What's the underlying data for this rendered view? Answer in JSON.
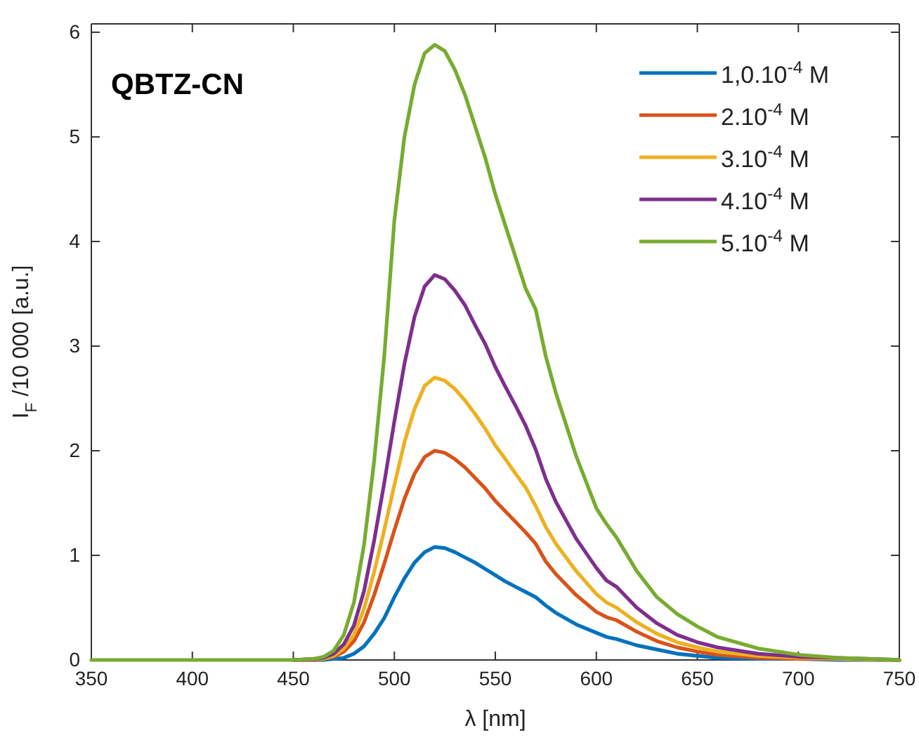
{
  "chart_data": {
    "type": "line",
    "title": "QBTZ-CN",
    "xlabel": "λ [nm]",
    "ylabel": "I$_{F}$ /10 000 [a.u.]",
    "x": [
      350,
      400,
      450,
      460,
      465,
      470,
      475,
      480,
      485,
      490,
      495,
      500,
      505,
      510,
      515,
      520,
      525,
      530,
      535,
      540,
      545,
      550,
      555,
      560,
      565,
      570,
      575,
      580,
      590,
      600,
      605,
      610,
      620,
      630,
      640,
      650,
      660,
      680,
      700,
      720,
      750
    ],
    "series": [
      {
        "name": "1,0.10$^{-4}$ M",
        "color": "#0072bd",
        "values": [
          null,
          null,
          0,
          0,
          0,
          0.01,
          0.02,
          0.06,
          0.13,
          0.25,
          0.4,
          0.6,
          0.78,
          0.93,
          1.03,
          1.08,
          1.07,
          1.03,
          0.98,
          0.93,
          0.87,
          0.81,
          0.75,
          0.7,
          0.65,
          0.6,
          0.52,
          0.45,
          0.34,
          0.26,
          0.22,
          0.2,
          0.14,
          0.1,
          0.06,
          0.04,
          0.02,
          0.01,
          0.01,
          0,
          0
        ]
      },
      {
        "name": "2.10$^{-4}$ M",
        "color": "#d95319",
        "values": [
          null,
          null,
          0,
          0,
          0.01,
          0.03,
          0.08,
          0.18,
          0.36,
          0.62,
          0.92,
          1.24,
          1.54,
          1.78,
          1.94,
          2.0,
          1.98,
          1.92,
          1.84,
          1.74,
          1.64,
          1.52,
          1.42,
          1.32,
          1.22,
          1.11,
          0.94,
          0.82,
          0.62,
          0.46,
          0.41,
          0.38,
          0.27,
          0.18,
          0.12,
          0.08,
          0.05,
          0.02,
          0.01,
          0.01,
          0
        ]
      },
      {
        "name": "3.10$^{-4}$ M",
        "color": "#edb120",
        "values": [
          null,
          null,
          0,
          0.01,
          0.01,
          0.04,
          0.11,
          0.24,
          0.49,
          0.84,
          1.24,
          1.67,
          2.08,
          2.4,
          2.62,
          2.7,
          2.67,
          2.59,
          2.48,
          2.35,
          2.21,
          2.05,
          1.92,
          1.78,
          1.65,
          1.47,
          1.27,
          1.11,
          0.85,
          0.63,
          0.55,
          0.5,
          0.36,
          0.25,
          0.17,
          0.12,
          0.08,
          0.04,
          0.02,
          0.01,
          0
        ]
      },
      {
        "name": "4.10$^{-4}$ M",
        "color": "#7e2f8e",
        "values": [
          null,
          null,
          0,
          0.01,
          0.02,
          0.06,
          0.15,
          0.33,
          0.66,
          1.14,
          1.69,
          2.28,
          2.83,
          3.28,
          3.57,
          3.68,
          3.64,
          3.53,
          3.39,
          3.2,
          3.02,
          2.8,
          2.61,
          2.43,
          2.24,
          2.01,
          1.73,
          1.51,
          1.16,
          0.88,
          0.76,
          0.7,
          0.5,
          0.35,
          0.24,
          0.17,
          0.12,
          0.06,
          0.03,
          0.02,
          0
        ]
      },
      {
        "name": "5.10$^{-4}$ M",
        "color": "#77ac30",
        "values": [
          0,
          0,
          0,
          0.01,
          0.03,
          0.09,
          0.24,
          0.55,
          1.1,
          1.9,
          2.9,
          4.2,
          5.0,
          5.5,
          5.8,
          5.88,
          5.82,
          5.64,
          5.4,
          5.1,
          4.8,
          4.45,
          4.15,
          3.85,
          3.55,
          3.35,
          2.9,
          2.55,
          1.95,
          1.45,
          1.3,
          1.17,
          0.85,
          0.6,
          0.44,
          0.32,
          0.22,
          0.11,
          0.05,
          0.02,
          0
        ]
      }
    ],
    "xlim": [
      350,
      750
    ],
    "xticks": [
      350,
      400,
      450,
      500,
      550,
      600,
      650,
      700,
      750
    ],
    "ylim": [
      0,
      6.08
    ],
    "yticks": [
      0,
      1,
      2,
      3,
      4,
      5,
      6
    ],
    "legend": "top right",
    "grid": false,
    "marker": "none",
    "line_style": "solid"
  }
}
